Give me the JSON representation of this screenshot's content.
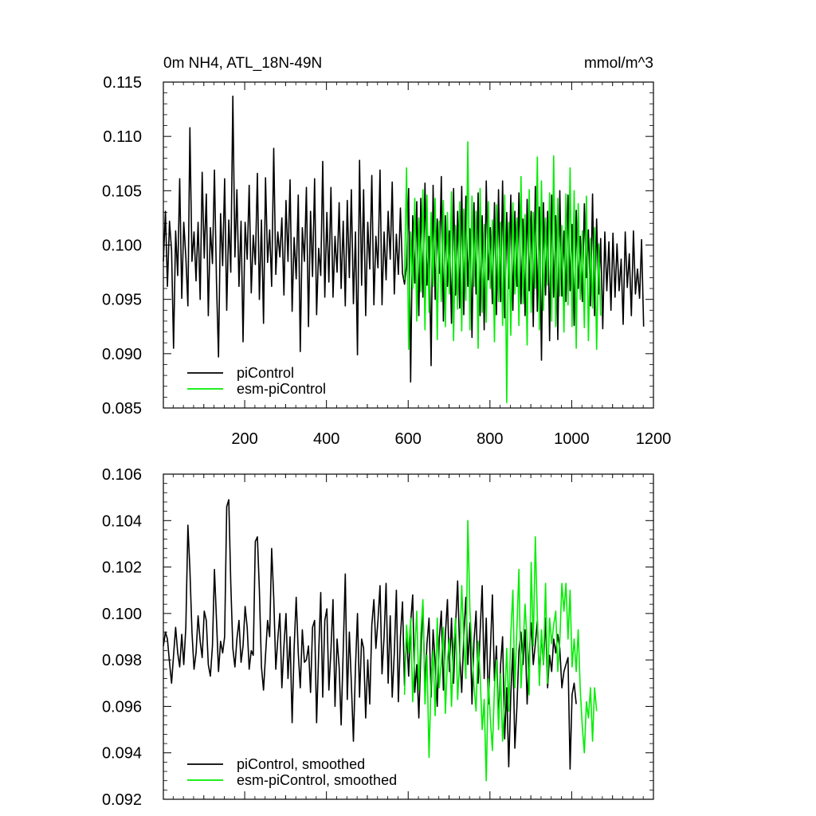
{
  "figure": {
    "title_left": "0m NH4, ATL_18N-49N",
    "title_right": "mmol/m^3"
  },
  "chart_data": [
    {
      "type": "line",
      "panel": "top",
      "xlim": [
        1,
        1200
      ],
      "ylim": [
        0.085,
        0.115
      ],
      "x_ticks": [
        200,
        400,
        600,
        800,
        1000,
        1200
      ],
      "x_tick_labels": [
        "200",
        "400",
        "600",
        "800",
        "1000",
        "1200"
      ],
      "y_ticks": [
        0.085,
        0.09,
        0.095,
        0.1,
        0.105,
        0.11,
        0.115
      ],
      "y_tick_labels": [
        "0.085",
        "0.090",
        "0.095",
        "0.100",
        "0.105",
        "0.110",
        "0.115"
      ],
      "legend_position": "bottom-left",
      "series": [
        {
          "name": "piControl",
          "color": "#000000",
          "x_start": 1,
          "x_step": 5,
          "values": [
            0.0985,
            0.1031,
            0.0962,
            0.1022,
            0.0995,
            0.0905,
            0.1013,
            0.0972,
            0.1061,
            0.0951,
            0.1021,
            0.0989,
            0.0944,
            0.1108,
            0.0985,
            0.1012,
            0.0967,
            0.1021,
            0.095,
            0.1067,
            0.0988,
            0.1047,
            0.0935,
            0.1016,
            0.0983,
            0.1069,
            0.0965,
            0.0897,
            0.1029,
            0.0981,
            0.1061,
            0.094,
            0.1023,
            0.0975,
            0.1137,
            0.0989,
            0.1051,
            0.0962,
            0.1022,
            0.0911,
            0.1021,
            0.0987,
            0.1055,
            0.0956,
            0.1009,
            0.0982,
            0.1066,
            0.095,
            0.1023,
            0.0928,
            0.1062,
            0.0984,
            0.1014,
            0.0962,
            0.1089,
            0.0973,
            0.1012,
            0.0989,
            0.1025,
            0.0954,
            0.1041,
            0.0985,
            0.106,
            0.0939,
            0.1007,
            0.0969,
            0.1046,
            0.0902,
            0.1016,
            0.0985,
            0.1053,
            0.0925,
            0.1031,
            0.0971,
            0.1061,
            0.0936,
            0.0997,
            0.0972,
            0.1077,
            0.0952,
            0.103,
            0.0966,
            0.1053,
            0.0952,
            0.1008,
            0.0975,
            0.1039,
            0.096,
            0.1022,
            0.0944,
            0.1041,
            0.097,
            0.1051,
            0.0946,
            0.1012,
            0.0899,
            0.1078,
            0.0963,
            0.1051,
            0.0935,
            0.1021,
            0.0978,
            0.1064,
            0.0945,
            0.1008,
            0.0979,
            0.1069,
            0.0945,
            0.1012,
            0.0968,
            0.1031,
            0.0987,
            0.1058,
            0.0955,
            0.101,
            0.0973,
            0.1034,
            0.0974,
            0.0964,
            0.0981,
            0.1052,
            0.0874,
            0.1027,
            0.0965,
            0.104,
            0.0935,
            0.1043,
            0.0952,
            0.1057,
            0.0963,
            0.1008,
            0.0889,
            0.1055,
            0.095,
            0.1024,
            0.0974,
            0.1063,
            0.093,
            0.1027,
            0.0962,
            0.1013,
            0.0928,
            0.1052,
            0.0954,
            0.1031,
            0.0942,
            0.1054,
            0.0936,
            0.1045,
            0.0962,
            0.1015,
            0.0915,
            0.1039,
            0.0955,
            0.1048,
            0.0935,
            0.1027,
            0.0922,
            0.1059,
            0.0968,
            0.1016,
            0.0946,
            0.1039,
            0.0936,
            0.1051,
            0.0948,
            0.1059,
            0.0933,
            0.103,
            0.096,
            0.1046,
            0.094,
            0.1031,
            0.0962,
            0.1048,
            0.0946,
            0.1024,
            0.0935,
            0.1042,
            0.0958,
            0.1031,
            0.0925,
            0.1054,
            0.0939,
            0.1035,
            0.0894,
            0.1039,
            0.0954,
            0.1031,
            0.0912,
            0.1046,
            0.0952,
            0.1027,
            0.0913,
            0.105,
            0.0953,
            0.1013,
            0.0948,
            0.1046,
            0.0958,
            0.1019,
            0.0926,
            0.1032,
            0.096,
            0.1008,
            0.0948,
            0.1038,
            0.097,
            0.1014,
            0.0944,
            0.1047,
            0.0935,
            0.1024,
            0.0955,
            0.1006,
            0.0923,
            0.1012,
            0.0958,
            0.1003,
            0.094,
            0.1011,
            0.0952,
            0.1001,
            0.0958,
            0.0987,
            0.0927,
            0.1012,
            0.0961,
            0.0992,
            0.0935,
            0.1013,
            0.0955,
            0.0978,
            0.0951,
            0.1005,
            0.0925
          ]
        },
        {
          "name": "esm-piControl",
          "color": "#00ee00",
          "x_start": 591,
          "x_step": 5,
          "values": [
            0.0968,
            0.1071,
            0.0904,
            0.1012,
            0.096,
            0.1043,
            0.093,
            0.1025,
            0.0957,
            0.1051,
            0.0922,
            0.1046,
            0.0938,
            0.103,
            0.0962,
            0.1043,
            0.0913,
            0.1022,
            0.0948,
            0.1041,
            0.0925,
            0.103,
            0.0955,
            0.1049,
            0.0912,
            0.1018,
            0.0941,
            0.104,
            0.0921,
            0.1033,
            0.0949,
            0.1095,
            0.0922,
            0.1045,
            0.0962,
            0.1031,
            0.0905,
            0.1052,
            0.0938,
            0.1019,
            0.0929,
            0.104,
            0.096,
            0.1023,
            0.0911,
            0.1037,
            0.0948,
            0.1021,
            0.0926,
            0.1046,
            0.0855,
            0.1021,
            0.0917,
            0.1039,
            0.0955,
            0.1025,
            0.0926,
            0.1063,
            0.0946,
            0.1028,
            0.0908,
            0.1051,
            0.0938,
            0.103,
            0.096,
            0.1081,
            0.0922,
            0.1059,
            0.094,
            0.1025,
            0.0963,
            0.1048,
            0.093,
            0.1082,
            0.0925,
            0.1043,
            0.0953,
            0.1018,
            0.092,
            0.1047,
            0.0945,
            0.1071,
            0.0925,
            0.105,
            0.0905,
            0.1038,
            0.095,
            0.1013,
            0.0924,
            0.1045,
            0.0912,
            0.1006,
            0.0942,
            0.1016,
            0.0904,
            0.1001,
            0.0935
          ]
        }
      ]
    },
    {
      "type": "line",
      "panel": "bottom",
      "xlim": [
        1,
        1200
      ],
      "ylim": [
        0.092,
        0.106
      ],
      "y_ticks": [
        0.092,
        0.094,
        0.096,
        0.098,
        0.1,
        0.102,
        0.104,
        0.106
      ],
      "y_tick_labels": [
        "0.092",
        "0.094",
        "0.096",
        "0.098",
        "0.100",
        "0.102",
        "0.104",
        "0.106"
      ],
      "legend_position": "bottom-left",
      "series": [
        {
          "name": "piControl, smoothed",
          "color": "#000000",
          "x_start": 1,
          "x_step": 5,
          "values": [
            0.0986,
            0.0992,
            0.0989,
            0.0979,
            0.097,
            0.0982,
            0.0994,
            0.0983,
            0.0977,
            0.0991,
            0.0978,
            0.0994,
            0.1038,
            0.1019,
            0.0992,
            0.0976,
            0.0983,
            0.0999,
            0.0988,
            0.0981,
            0.1001,
            0.0997,
            0.0978,
            0.0973,
            0.0986,
            0.1019,
            0.0997,
            0.0975,
            0.0988,
            0.0983,
            0.099,
            0.1046,
            0.1049,
            0.1013,
            0.0985,
            0.0977,
            0.0989,
            0.0997,
            0.0979,
            0.0986,
            0.1003,
            0.0994,
            0.0976,
            0.0984,
            0.0982,
            0.1031,
            0.1033,
            0.101,
            0.0977,
            0.0967,
            0.0982,
            0.0997,
            0.099,
            0.1028,
            0.1007,
            0.0976,
            0.0989,
            0.1,
            0.0968,
            0.0986,
            0.1,
            0.0972,
            0.099,
            0.0953,
            0.0985,
            0.1007,
            0.0983,
            0.0968,
            0.0993,
            0.0979,
            0.098,
            0.0986,
            0.0966,
            0.0994,
            0.0997,
            0.0953,
            0.0983,
            0.1009,
            0.0964,
            0.0997,
            0.1002,
            0.0967,
            0.0984,
            0.1006,
            0.096,
            0.0989,
            0.0977,
            0.0952,
            0.0984,
            0.1017,
            0.0963,
            0.0992,
            0.097,
            0.0945,
            0.0977,
            0.1,
            0.0964,
            0.0989,
            0.0985,
            0.0955,
            0.098,
            0.0961,
            0.0995,
            0.1006,
            0.0985,
            0.0997,
            0.1012,
            0.0974,
            0.099,
            0.1013,
            0.097,
            0.0999,
            0.0964,
            0.0983,
            0.101,
            0.0962,
            0.099,
            0.1005,
            0.0969,
            0.0992,
            0.0973,
            0.0996,
            0.1008,
            0.0966,
            0.0978,
            0.0955,
            0.0983,
            0.1004,
            0.0968,
            0.0987,
            0.0998,
            0.0964,
            0.0993,
            0.0979,
            0.096,
            0.0989,
            0.1001,
            0.0967,
            0.0991,
            0.1006,
            0.0975,
            0.0998,
            0.097,
            0.0995,
            0.1014,
            0.0983,
            0.0966,
            0.099,
            0.1007,
            0.0978,
            0.0996,
            0.0961,
            0.0988,
            0.1001,
            0.097,
            0.0992,
            0.1012,
            0.0972,
            0.0998,
            0.0961,
            0.0983,
            0.1008,
            0.0971,
            0.0986,
            0.0953,
            0.0978,
            0.099,
            0.0946,
            0.0968,
            0.0934,
            0.0965,
            0.0985,
            0.0942,
            0.096,
            0.0984,
            0.0992,
            0.0978,
            0.0993,
            0.0961,
            0.0982,
            0.0996,
            0.0978,
            0.0987,
            0.0997,
            0.0972,
            0.0991,
            0.0978,
            0.0998,
            0.0968,
            0.0982,
            0.0975,
            0.0989,
            0.0983,
            0.0991,
            0.0985,
            0.0968,
            0.0975,
            0.0978,
            0.0981,
            0.0933,
            0.0965,
            0.097,
            0.0961
          ]
        },
        {
          "name": "esm-piControl, smoothed",
          "color": "#00ee00",
          "x_start": 591,
          "x_step": 5,
          "values": [
            0.0965,
            0.0995,
            0.0983,
            0.0998,
            0.0962,
            0.0984,
            0.1001,
            0.0967,
            0.0992,
            0.1006,
            0.0961,
            0.0982,
            0.0938,
            0.0971,
            0.0984,
            0.0956,
            0.0998,
            0.0968,
            0.0979,
            0.0994,
            0.0957,
            0.098,
            0.0989,
            0.096,
            0.0985,
            0.0998,
            0.0963,
            0.098,
            0.1012,
            0.0989,
            0.0972,
            0.104,
            0.1001,
            0.0985,
            0.0969,
            0.0958,
            0.0988,
            0.0973,
            0.095,
            0.0963,
            0.0928,
            0.0972,
            0.0955,
            0.0941,
            0.0968,
            0.098,
            0.095,
            0.0974,
            0.0945,
            0.0962,
            0.0985,
            0.0958,
            0.0991,
            0.101,
            0.0968,
            0.0994,
            0.1019,
            0.0968,
            0.0986,
            0.1004,
            0.0987,
            0.0965,
            0.1022,
            0.0986,
            0.1033,
            0.0998,
            0.0969,
            0.0993,
            0.0978,
            0.1013,
            0.097,
            0.0998,
            0.0987,
            0.0995,
            0.1001,
            0.0975,
            0.0988,
            0.1013,
            0.1001,
            0.1013,
            0.0989,
            0.101,
            0.0977,
            0.0989,
            0.0975,
            0.0993,
            0.0967,
            0.0951,
            0.094,
            0.0962,
            0.0955,
            0.0968,
            0.0945,
            0.0968,
            0.0958
          ]
        }
      ]
    }
  ]
}
